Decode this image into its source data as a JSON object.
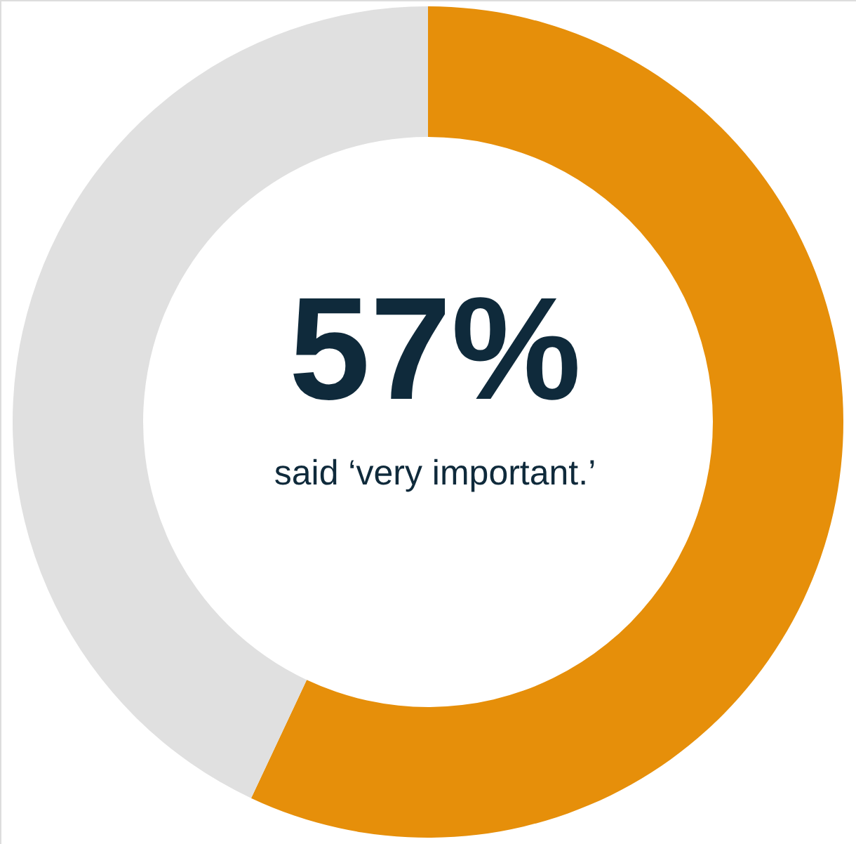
{
  "chart_data": {
    "type": "donut",
    "categories": [
      null,
      null
    ],
    "values": [
      57,
      43
    ],
    "colors": [
      "#e68f0a",
      "#e0e0e0"
    ],
    "value_labels": [
      "57%",
      null
    ],
    "annotations": [
      "said ‘very important.’"
    ]
  }
}
